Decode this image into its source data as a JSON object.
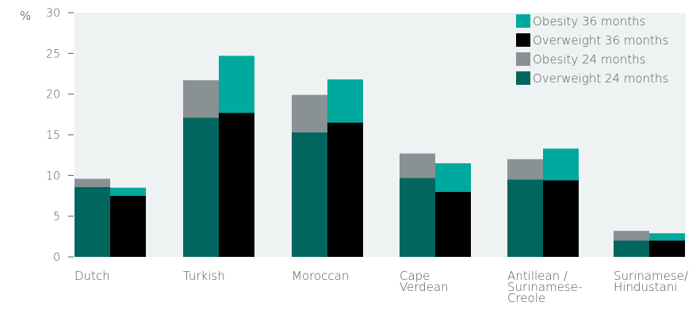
{
  "chart_data": {
    "type": "bar",
    "y_unit_label": "%",
    "ylim": [
      0,
      30
    ],
    "yticks": [
      0,
      5,
      10,
      15,
      20,
      25,
      30
    ],
    "grid": false,
    "legend_placement": "top-right",
    "categories": [
      [
        "Dutch"
      ],
      [
        "Turkish"
      ],
      [
        "Moroccan"
      ],
      [
        "Cape",
        "Verdean"
      ],
      [
        "Antillean /",
        "Surinamese-",
        "Creole"
      ],
      [
        "Surinamese/",
        "Hindustani"
      ]
    ],
    "series": [
      {
        "name": "Overweight 24 months",
        "bar": "24 months",
        "stack": "bottom",
        "color": "#00665e",
        "values": [
          8.6,
          17.1,
          15.3,
          9.7,
          9.5,
          2.0
        ]
      },
      {
        "name": "Obesity 24 months",
        "bar": "24 months",
        "stack": "top",
        "color": "#8a9193",
        "values": [
          1.0,
          4.6,
          4.6,
          3.0,
          2.5,
          1.2
        ]
      },
      {
        "name": "Overweight 36 months",
        "bar": "36 months",
        "stack": "bottom",
        "color": "#000000",
        "values": [
          7.5,
          17.7,
          16.5,
          8.0,
          9.4,
          2.0
        ]
      },
      {
        "name": "Obesity 36 months",
        "bar": "36 months",
        "stack": "top",
        "color": "#00a99d",
        "values": [
          1.0,
          7.0,
          5.3,
          3.5,
          3.9,
          0.9
        ]
      }
    ],
    "legend": [
      {
        "label": "Obesity 36 months",
        "color": "#00a99d"
      },
      {
        "label": "Overweight 36 months",
        "color": "#000000"
      },
      {
        "label": "Obesity 24 months",
        "color": "#8a9193"
      },
      {
        "label": "Overweight 24 months",
        "color": "#00665e"
      }
    ],
    "background_color": "#eef2f3"
  }
}
